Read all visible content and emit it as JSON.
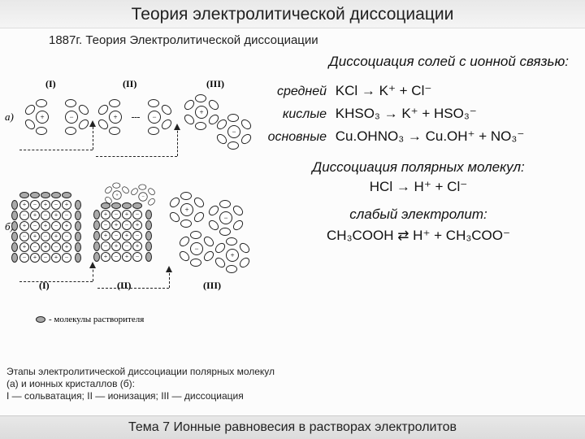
{
  "title": "Теория электролитической диссоциации",
  "subtitle": "1887г. Теория Электролитической диссоциации",
  "section_ionic": "Диссоциация солей с ионной связью:",
  "rows": {
    "medium": {
      "label": "средней",
      "lhs": "KCl",
      "arrow": "→",
      "rhs": "K⁺  +  Cl⁻"
    },
    "acid": {
      "label": "кислые",
      "lhs": "KHSO₃",
      "arrow": "→",
      "rhs": "K⁺  +  HSO₃⁻"
    },
    "basic": {
      "label": "основные",
      "lhs": "Cu.OHNO₃",
      "arrow": "→",
      "rhs": "Cu.OH⁺ + NO₃⁻"
    }
  },
  "section_polar": "Диссоциация полярных молекул:",
  "eq_polar": "HCl  →  H⁺ + Cl⁻",
  "section_weak": "слабый электролит:",
  "eq_weak": "CH₃COOH  ⇄  H⁺ + CH₃COO⁻",
  "caption_l1": "Этапы электролитической диссоциации полярных молекул",
  "caption_l2": "(а)  и ионных кристаллов (б):",
  "caption_l3": "I — сольватация; II — ионизация; III — диссоциация",
  "footer": "Тема 7  Ионные равновесия в растворах электролитов",
  "diagram": {
    "label_a": "а)",
    "label_b": "б)",
    "stageI": "(I)",
    "stageII": "(II)",
    "stageIII": "(III)",
    "legend": "- молекулы растворителя"
  }
}
